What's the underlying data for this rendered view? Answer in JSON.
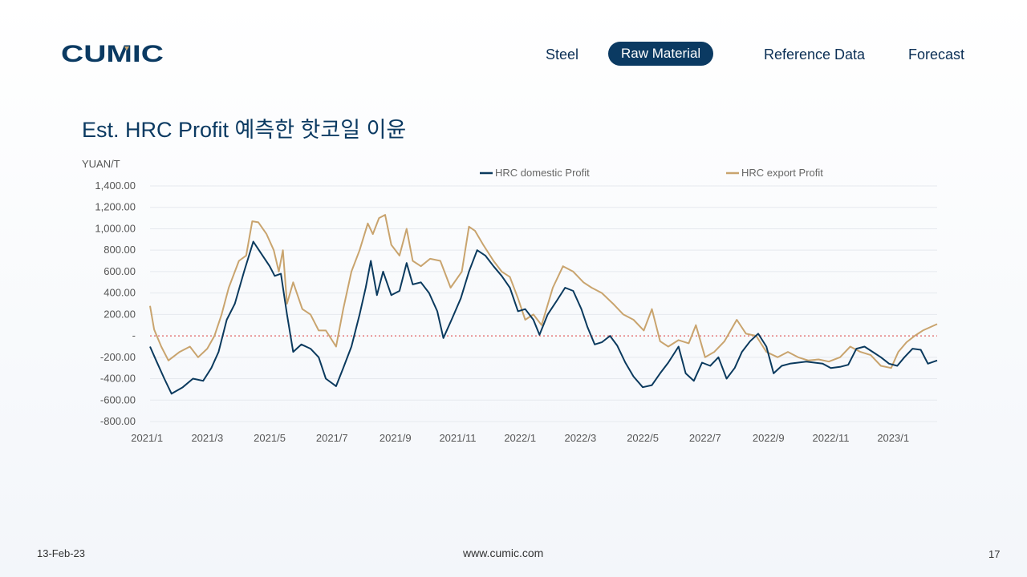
{
  "brand": {
    "logo_text": "CUMIC"
  },
  "nav": {
    "items": [
      {
        "label": "Steel",
        "active": false
      },
      {
        "label": "Raw Material",
        "active": true
      },
      {
        "label": "Reference Data",
        "active": false
      },
      {
        "label": "Forecast",
        "active": false
      }
    ]
  },
  "page": {
    "title": "Est. HRC Profit 예측한 핫코일 이윤"
  },
  "footer": {
    "date": "13-Feb-23",
    "url": "www.cumic.com",
    "page_number": "17"
  },
  "colors": {
    "domestic": "#0b3a5e",
    "export": "#c9a46e",
    "zero_line": "#e06060",
    "accent": "#0b3a62"
  },
  "chart_data": {
    "type": "line",
    "title": "",
    "ylabel": "YUAN/T",
    "xlabel": "",
    "ylim": [
      -800,
      1400
    ],
    "y_ticks": [
      1400,
      1200,
      1000,
      800,
      600,
      400,
      200,
      0,
      -200,
      -400,
      -600,
      -800
    ],
    "y_tick_labels": [
      "1,400.00",
      "1,200.00",
      "1,000.00",
      "800.00",
      "600.00",
      "400.00",
      "200.00",
      "-",
      "-200.00",
      "-400.00",
      "-600.00",
      "-800.00"
    ],
    "x_ticks": [
      "2021/1",
      "2021/3",
      "2021/5",
      "2021/7",
      "2021/9",
      "2021/11",
      "2022/1",
      "2022/3",
      "2022/5",
      "2022/7",
      "2022/9",
      "2022/11",
      "2023/1"
    ],
    "xlim": [
      "2021-01-04",
      "2023-02-13"
    ],
    "grid": true,
    "reference_line": 0,
    "legend_position": "top",
    "series": [
      {
        "name": "HRC domestic Profit",
        "points": [
          [
            "2021-01-04",
            -100
          ],
          [
            "2021-01-10",
            -230
          ],
          [
            "2021-01-18",
            -400
          ],
          [
            "2021-01-25",
            -540
          ],
          [
            "2021-02-05",
            -480
          ],
          [
            "2021-02-15",
            -400
          ],
          [
            "2021-02-25",
            -420
          ],
          [
            "2021-03-05",
            -300
          ],
          [
            "2021-03-12",
            -150
          ],
          [
            "2021-03-20",
            150
          ],
          [
            "2021-03-28",
            300
          ],
          [
            "2021-04-06",
            600
          ],
          [
            "2021-04-15",
            880
          ],
          [
            "2021-04-22",
            780
          ],
          [
            "2021-05-01",
            650
          ],
          [
            "2021-05-06",
            560
          ],
          [
            "2021-05-12",
            580
          ],
          [
            "2021-05-18",
            200
          ],
          [
            "2021-05-24",
            -150
          ],
          [
            "2021-06-01",
            -80
          ],
          [
            "2021-06-10",
            -120
          ],
          [
            "2021-06-18",
            -200
          ],
          [
            "2021-06-25",
            -400
          ],
          [
            "2021-07-05",
            -470
          ],
          [
            "2021-07-12",
            -300
          ],
          [
            "2021-07-20",
            -100
          ],
          [
            "2021-07-28",
            200
          ],
          [
            "2021-08-03",
            450
          ],
          [
            "2021-08-08",
            700
          ],
          [
            "2021-08-14",
            380
          ],
          [
            "2021-08-20",
            600
          ],
          [
            "2021-08-28",
            380
          ],
          [
            "2021-09-05",
            420
          ],
          [
            "2021-09-12",
            680
          ],
          [
            "2021-09-18",
            480
          ],
          [
            "2021-09-26",
            500
          ],
          [
            "2021-10-04",
            400
          ],
          [
            "2021-10-12",
            230
          ],
          [
            "2021-10-18",
            -20
          ],
          [
            "2021-10-26",
            150
          ],
          [
            "2021-11-04",
            350
          ],
          [
            "2021-11-12",
            600
          ],
          [
            "2021-11-20",
            800
          ],
          [
            "2021-11-28",
            750
          ],
          [
            "2021-12-06",
            650
          ],
          [
            "2021-12-14",
            560
          ],
          [
            "2021-12-22",
            450
          ],
          [
            "2021-12-30",
            230
          ],
          [
            "2022-01-06",
            250
          ],
          [
            "2022-01-14",
            150
          ],
          [
            "2022-01-20",
            10
          ],
          [
            "2022-01-28",
            200
          ],
          [
            "2022-02-06",
            330
          ],
          [
            "2022-02-14",
            450
          ],
          [
            "2022-02-22",
            420
          ],
          [
            "2022-03-02",
            250
          ],
          [
            "2022-03-08",
            80
          ],
          [
            "2022-03-15",
            -80
          ],
          [
            "2022-03-22",
            -60
          ],
          [
            "2022-03-30",
            0
          ],
          [
            "2022-04-06",
            -90
          ],
          [
            "2022-04-14",
            -250
          ],
          [
            "2022-04-22",
            -380
          ],
          [
            "2022-05-01",
            -480
          ],
          [
            "2022-05-10",
            -460
          ],
          [
            "2022-05-18",
            -350
          ],
          [
            "2022-05-26",
            -250
          ],
          [
            "2022-06-05",
            -100
          ],
          [
            "2022-06-12",
            -350
          ],
          [
            "2022-06-20",
            -420
          ],
          [
            "2022-06-28",
            -250
          ],
          [
            "2022-07-06",
            -280
          ],
          [
            "2022-07-14",
            -200
          ],
          [
            "2022-07-22",
            -400
          ],
          [
            "2022-07-30",
            -300
          ],
          [
            "2022-08-06",
            -150
          ],
          [
            "2022-08-14",
            -50
          ],
          [
            "2022-08-22",
            20
          ],
          [
            "2022-08-30",
            -100
          ],
          [
            "2022-09-06",
            -350
          ],
          [
            "2022-09-14",
            -280
          ],
          [
            "2022-09-22",
            -260
          ],
          [
            "2022-09-30",
            -250
          ],
          [
            "2022-10-08",
            -240
          ],
          [
            "2022-10-16",
            -250
          ],
          [
            "2022-10-24",
            -260
          ],
          [
            "2022-11-01",
            -300
          ],
          [
            "2022-11-10",
            -290
          ],
          [
            "2022-11-18",
            -270
          ],
          [
            "2022-11-26",
            -120
          ],
          [
            "2022-12-04",
            -100
          ],
          [
            "2022-12-12",
            -150
          ],
          [
            "2022-12-20",
            -200
          ],
          [
            "2022-12-28",
            -260
          ],
          [
            "2023-01-05",
            -280
          ],
          [
            "2023-01-12",
            -200
          ],
          [
            "2023-01-20",
            -120
          ],
          [
            "2023-01-28",
            -130
          ],
          [
            "2023-02-04",
            -260
          ],
          [
            "2023-02-13",
            -230
          ]
        ]
      },
      {
        "name": "HRC export Profit",
        "points": [
          [
            "2021-01-04",
            280
          ],
          [
            "2021-01-08",
            60
          ],
          [
            "2021-01-15",
            -100
          ],
          [
            "2021-01-22",
            -230
          ],
          [
            "2021-02-02",
            -150
          ],
          [
            "2021-02-12",
            -100
          ],
          [
            "2021-02-20",
            -200
          ],
          [
            "2021-03-01",
            -120
          ],
          [
            "2021-03-08",
            0
          ],
          [
            "2021-03-15",
            200
          ],
          [
            "2021-03-22",
            450
          ],
          [
            "2021-04-01",
            700
          ],
          [
            "2021-04-08",
            750
          ],
          [
            "2021-04-14",
            1070
          ],
          [
            "2021-04-20",
            1060
          ],
          [
            "2021-04-28",
            950
          ],
          [
            "2021-05-05",
            800
          ],
          [
            "2021-05-10",
            600
          ],
          [
            "2021-05-14",
            800
          ],
          [
            "2021-05-18",
            300
          ],
          [
            "2021-05-24",
            500
          ],
          [
            "2021-06-02",
            250
          ],
          [
            "2021-06-10",
            200
          ],
          [
            "2021-06-18",
            50
          ],
          [
            "2021-06-25",
            50
          ],
          [
            "2021-07-05",
            -100
          ],
          [
            "2021-07-12",
            250
          ],
          [
            "2021-07-20",
            600
          ],
          [
            "2021-07-28",
            800
          ],
          [
            "2021-08-05",
            1050
          ],
          [
            "2021-08-10",
            950
          ],
          [
            "2021-08-16",
            1100
          ],
          [
            "2021-08-22",
            1130
          ],
          [
            "2021-08-28",
            850
          ],
          [
            "2021-09-05",
            750
          ],
          [
            "2021-09-12",
            1000
          ],
          [
            "2021-09-18",
            700
          ],
          [
            "2021-09-26",
            650
          ],
          [
            "2021-10-05",
            720
          ],
          [
            "2021-10-15",
            700
          ],
          [
            "2021-10-25",
            450
          ],
          [
            "2021-11-05",
            600
          ],
          [
            "2021-11-12",
            1020
          ],
          [
            "2021-11-18",
            980
          ],
          [
            "2021-11-26",
            850
          ],
          [
            "2021-12-06",
            700
          ],
          [
            "2021-12-14",
            600
          ],
          [
            "2021-12-22",
            550
          ],
          [
            "2021-12-30",
            350
          ],
          [
            "2022-01-06",
            150
          ],
          [
            "2022-01-14",
            200
          ],
          [
            "2022-01-22",
            100
          ],
          [
            "2022-02-02",
            450
          ],
          [
            "2022-02-12",
            650
          ],
          [
            "2022-02-22",
            600
          ],
          [
            "2022-03-04",
            500
          ],
          [
            "2022-03-12",
            450
          ],
          [
            "2022-03-22",
            400
          ],
          [
            "2022-04-02",
            300
          ],
          [
            "2022-04-12",
            200
          ],
          [
            "2022-04-22",
            150
          ],
          [
            "2022-05-02",
            50
          ],
          [
            "2022-05-10",
            250
          ],
          [
            "2022-05-18",
            -50
          ],
          [
            "2022-05-26",
            -100
          ],
          [
            "2022-06-05",
            -40
          ],
          [
            "2022-06-15",
            -70
          ],
          [
            "2022-06-22",
            100
          ],
          [
            "2022-07-01",
            -200
          ],
          [
            "2022-07-10",
            -150
          ],
          [
            "2022-07-20",
            -50
          ],
          [
            "2022-08-01",
            150
          ],
          [
            "2022-08-10",
            20
          ],
          [
            "2022-08-20",
            0
          ],
          [
            "2022-08-30",
            -150
          ],
          [
            "2022-09-10",
            -200
          ],
          [
            "2022-09-20",
            -150
          ],
          [
            "2022-09-30",
            -200
          ],
          [
            "2022-10-10",
            -230
          ],
          [
            "2022-10-20",
            -220
          ],
          [
            "2022-10-30",
            -240
          ],
          [
            "2022-11-10",
            -200
          ],
          [
            "2022-11-20",
            -100
          ],
          [
            "2022-11-30",
            -150
          ],
          [
            "2022-12-10",
            -180
          ],
          [
            "2022-12-20",
            -280
          ],
          [
            "2022-12-30",
            -300
          ],
          [
            "2023-01-06",
            -150
          ],
          [
            "2023-01-14",
            -60
          ],
          [
            "2023-01-22",
            0
          ],
          [
            "2023-01-30",
            50
          ],
          [
            "2023-02-06",
            80
          ],
          [
            "2023-02-13",
            110
          ]
        ]
      }
    ]
  }
}
